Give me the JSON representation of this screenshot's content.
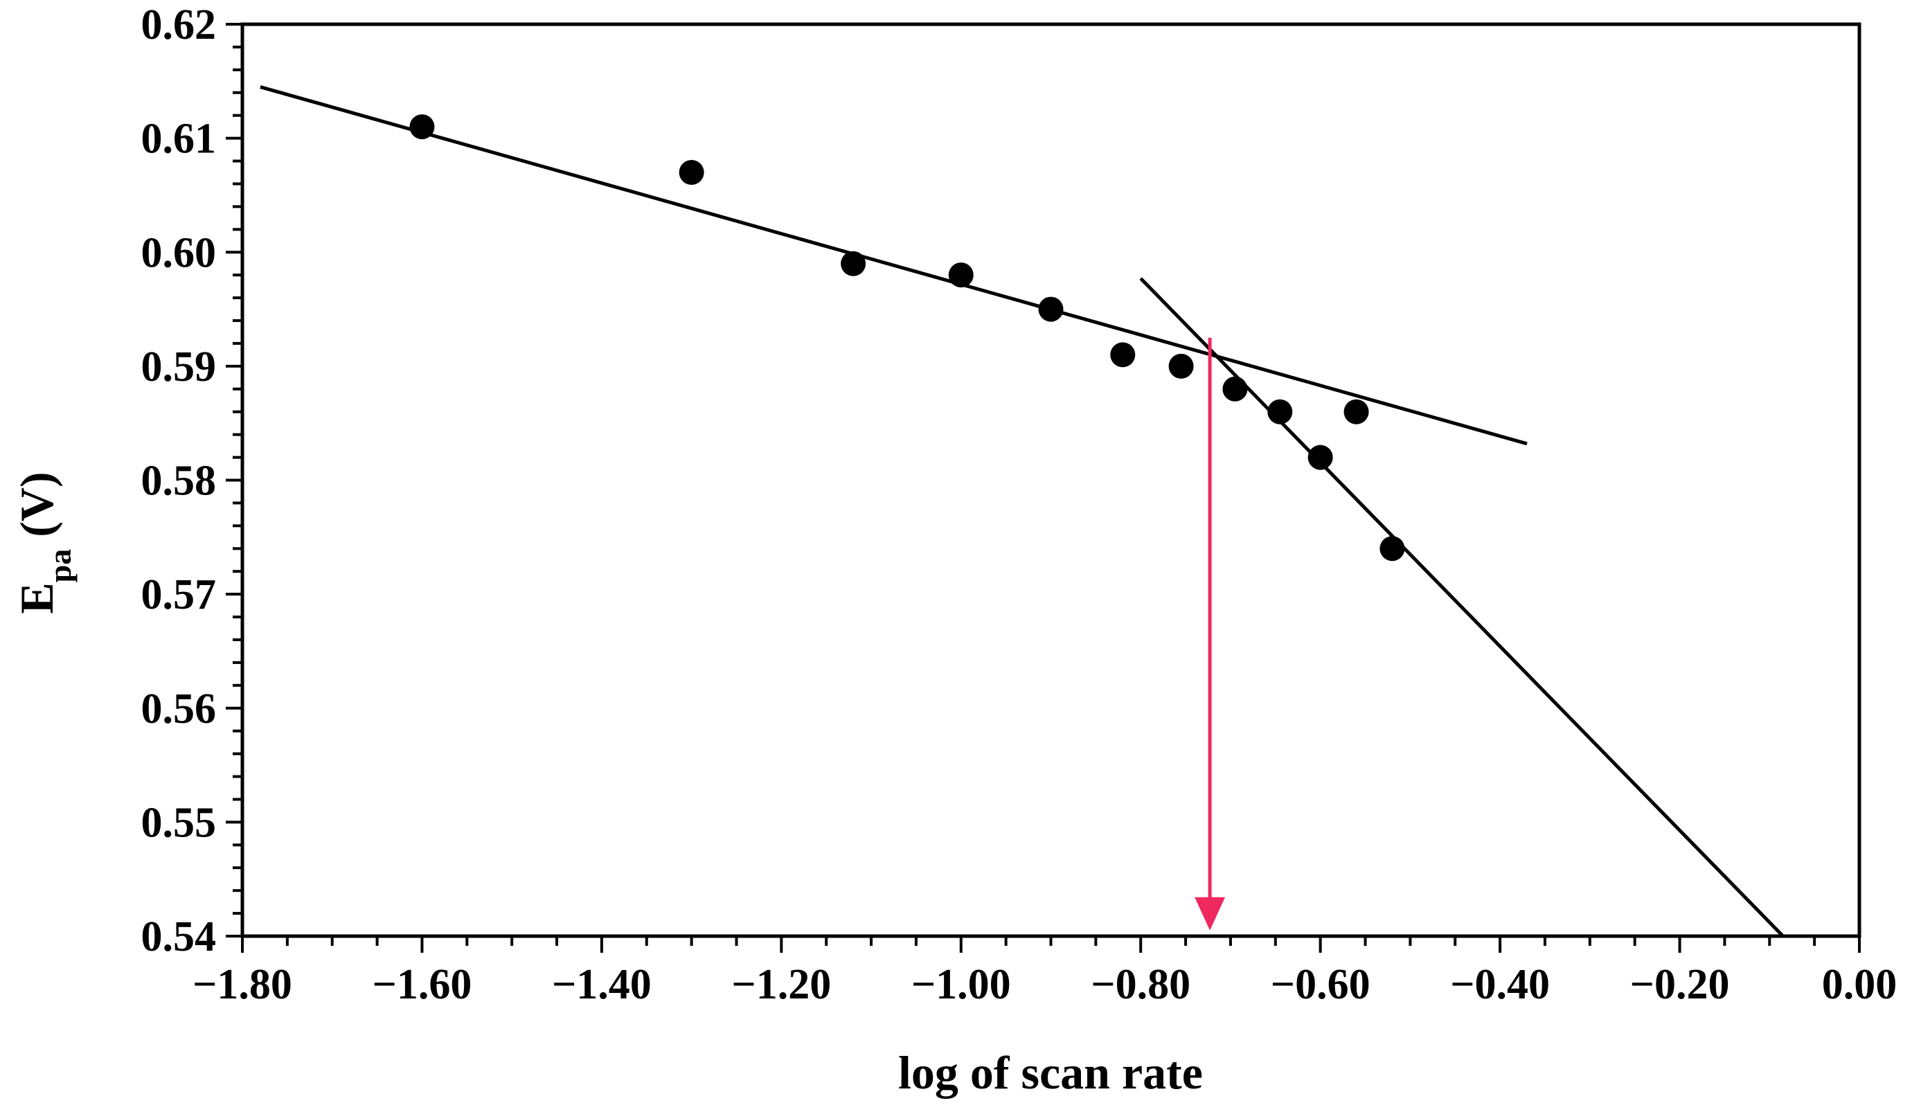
{
  "chart_data": {
    "type": "scatter",
    "title": "",
    "xlabel": "log of scan rate",
    "ylabel": {
      "main": "E",
      "subscript": "pa",
      "suffix": " (V)"
    },
    "xlim": [
      -1.8,
      0.0
    ],
    "ylim": [
      0.54,
      0.62
    ],
    "grid": false,
    "legend": "none",
    "x_ticks": [
      -1.8,
      -1.6,
      -1.4,
      -1.2,
      -1.0,
      -0.8,
      -0.6,
      -0.4,
      -0.2,
      0.0
    ],
    "x_tick_labels": [
      "−1.80",
      "−1.60",
      "−1.40",
      "−1.20",
      "−1.00",
      "−0.80",
      "−0.60",
      "−0.40",
      "−0.20",
      "0.00"
    ],
    "x_minor_step": 0.05,
    "y_ticks": [
      0.54,
      0.55,
      0.56,
      0.57,
      0.58,
      0.59,
      0.6,
      0.61,
      0.62
    ],
    "y_tick_labels": [
      "0.54",
      "0.55",
      "0.56",
      "0.57",
      "0.58",
      "0.59",
      "0.60",
      "0.61",
      "0.62"
    ],
    "y_minor_step": 0.002,
    "series": [
      {
        "name": "Epa data points",
        "x": [
          -1.6,
          -1.3,
          -1.12,
          -1.0,
          -0.9,
          -0.82,
          -0.755,
          -0.695,
          -0.645,
          -0.6,
          -0.56,
          -0.52
        ],
        "y": [
          0.611,
          0.607,
          0.599,
          0.598,
          0.595,
          0.591,
          0.59,
          0.588,
          0.586,
          0.582,
          0.586,
          0.574
        ]
      }
    ],
    "fit_lines": [
      {
        "name": "low-scan-rate fit",
        "x": [
          -1.78,
          -0.37
        ],
        "y": [
          0.6145,
          0.5832
        ]
      },
      {
        "name": "high-scan-rate fit",
        "x": [
          -0.8,
          -0.085
        ],
        "y": [
          0.5977,
          0.54
        ]
      }
    ],
    "annotation": {
      "name": "intersection arrow",
      "x": -0.723,
      "y_start": 0.5925,
      "y_end": 0.5405,
      "color": "#f02860"
    },
    "colors": {
      "marker": "#000000",
      "line": "#000000",
      "arrow": "#f02860"
    }
  }
}
